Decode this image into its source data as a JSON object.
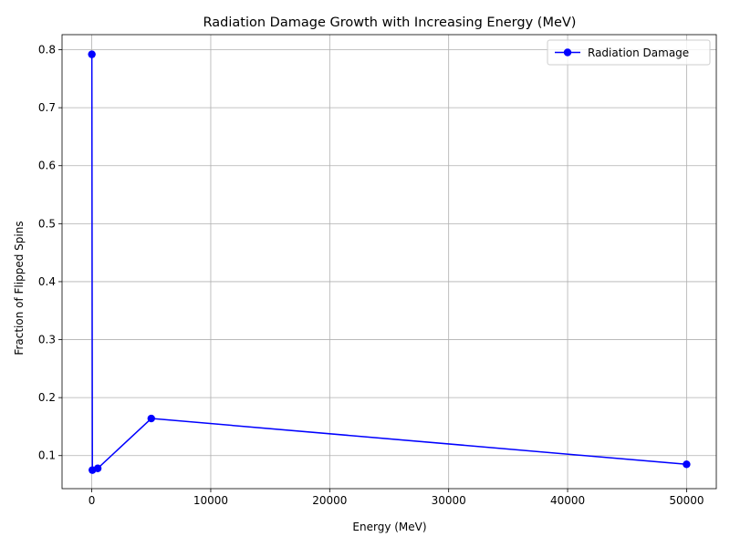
{
  "chart_data": {
    "type": "line",
    "title": "Radiation Damage Growth with Increasing Energy (MeV)",
    "xlabel": "Energy (MeV)",
    "ylabel": "Fraction of Flipped Spins",
    "xlim": [
      -2500,
      52500
    ],
    "ylim": [
      0.043,
      0.826
    ],
    "xticks": [
      0,
      10000,
      20000,
      30000,
      40000,
      50000
    ],
    "xtick_labels": [
      "0",
      "10000",
      "20000",
      "30000",
      "40000",
      "50000"
    ],
    "yticks": [
      0.1,
      0.2,
      0.3,
      0.4,
      0.5,
      0.6,
      0.7,
      0.8
    ],
    "ytick_labels": [
      "0.1",
      "0.2",
      "0.3",
      "0.4",
      "0.5",
      "0.6",
      "0.7",
      "0.8"
    ],
    "grid": true,
    "legend_position": "top-right",
    "series": [
      {
        "name": "Radiation Damage",
        "color": "#0000ff",
        "marker": "circle",
        "x": [
          5,
          50,
          500,
          5000,
          50000
        ],
        "y": [
          0.792,
          0.075,
          0.078,
          0.164,
          0.085
        ]
      }
    ]
  }
}
